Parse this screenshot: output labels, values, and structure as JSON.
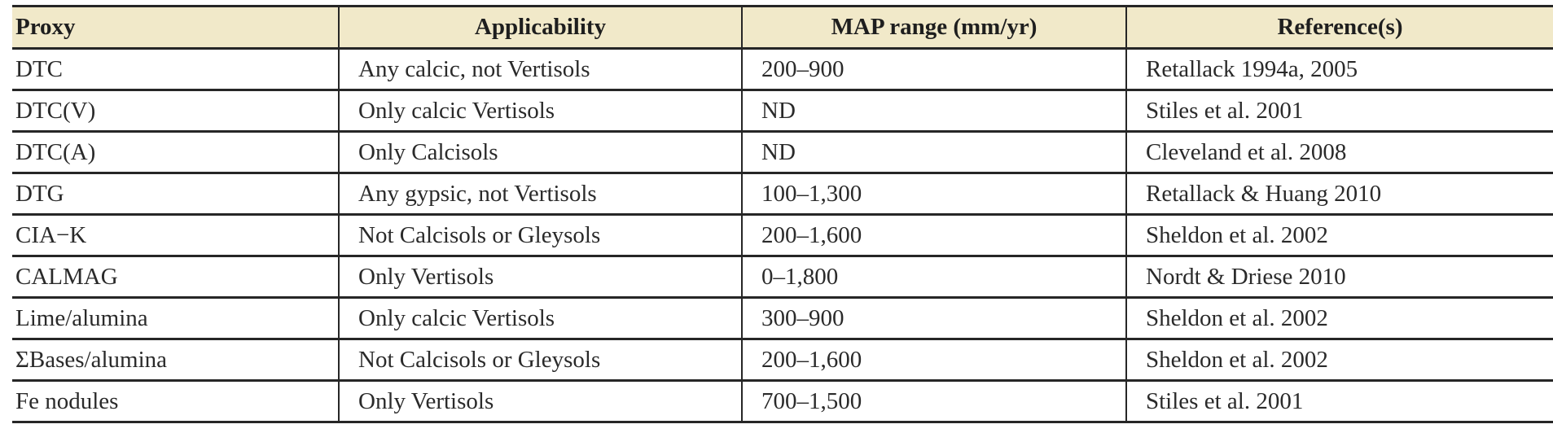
{
  "table": {
    "headers": [
      "Proxy",
      "Applicability",
      "MAP range (mm/yr)",
      "Reference(s)"
    ],
    "header_bg": "#f1e9c9",
    "rows": [
      [
        "DTC",
        "Any calcic, not Vertisols",
        "200–900",
        "Retallack 1994a, 2005"
      ],
      [
        "DTC(V)",
        "Only calcic Vertisols",
        "ND",
        "Stiles et al. 2001"
      ],
      [
        "DTC(A)",
        "Only Calcisols",
        "ND",
        "Cleveland et al. 2008"
      ],
      [
        "DTG",
        "Any gypsic, not Vertisols",
        "100–1,300",
        "Retallack & Huang 2010"
      ],
      [
        "CIA−K",
        "Not Calcisols or Gleysols",
        "200–1,600",
        "Sheldon et al. 2002"
      ],
      [
        "CALMAG",
        "Only Vertisols",
        "0–1,800",
        "Nordt & Driese 2010"
      ],
      [
        "Lime/alumina",
        "Only calcic Vertisols",
        "300–900",
        "Sheldon et al. 2002"
      ],
      [
        "ΣBases/alumina",
        "Not Calcisols or Gleysols",
        "200–1,600",
        "Sheldon et al. 2002"
      ],
      [
        "Fe nodules",
        "Only Vertisols",
        "700–1,500",
        "Stiles et al. 2001"
      ]
    ]
  }
}
